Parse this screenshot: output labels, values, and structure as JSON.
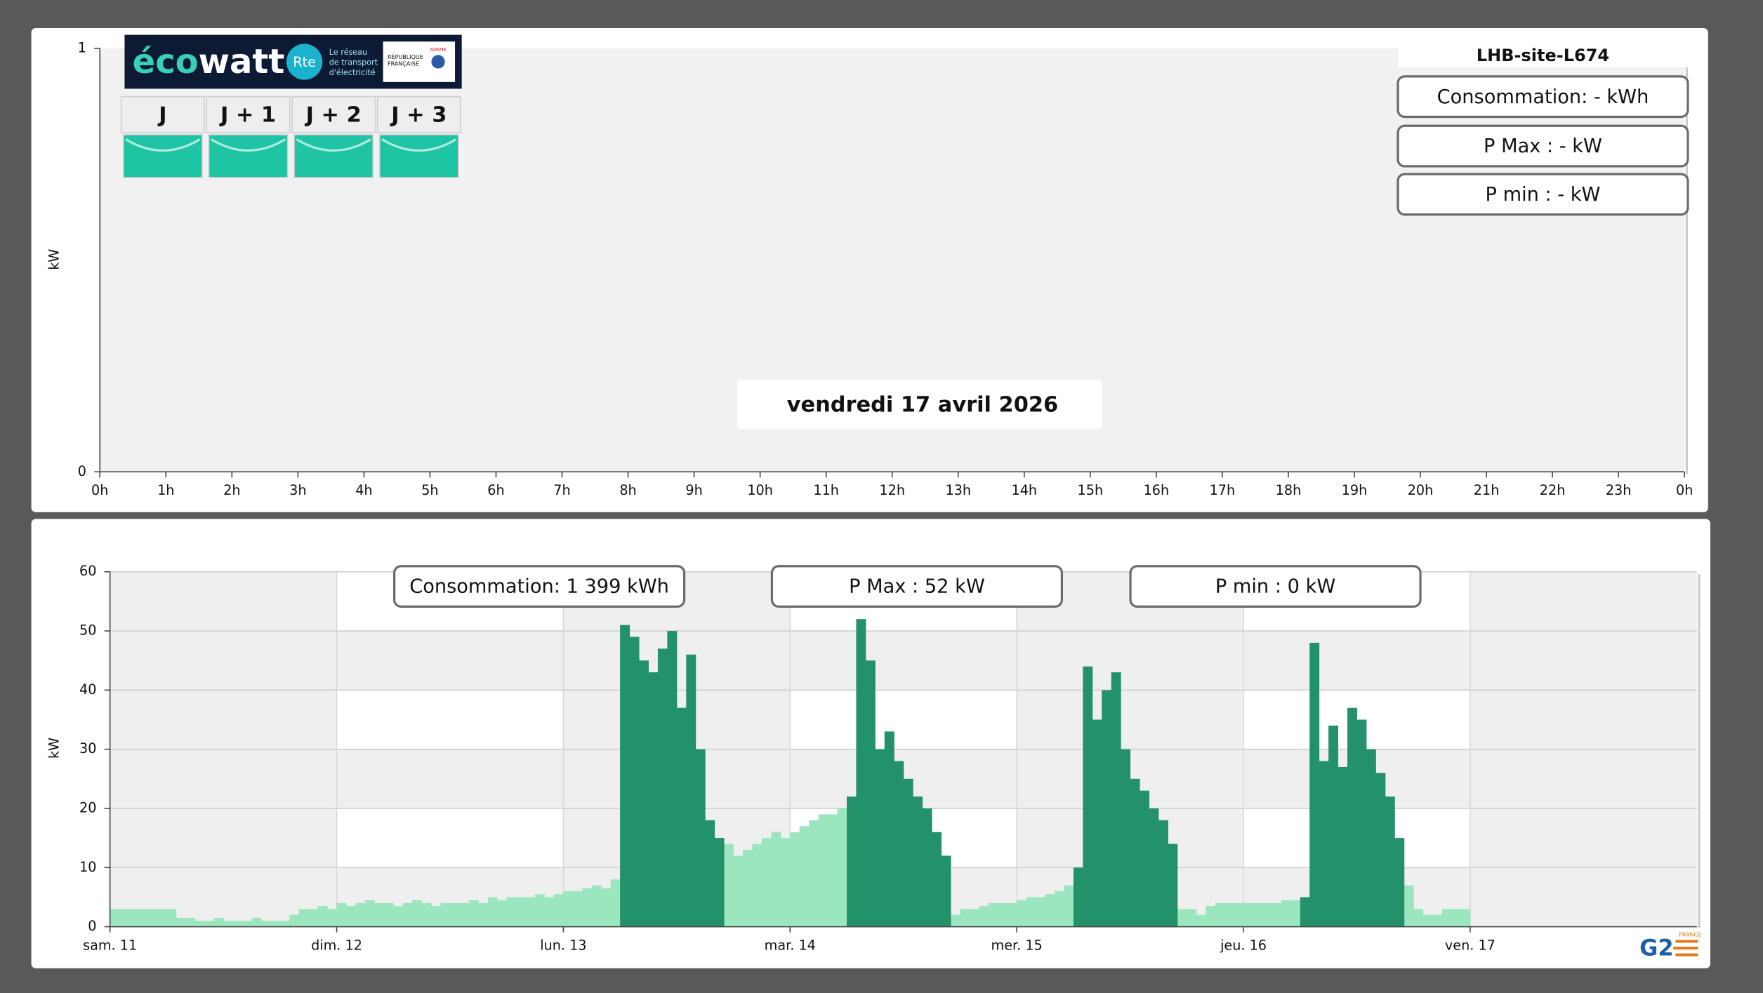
{
  "ecowatt": {
    "logo_parts": [
      "éco",
      "watt"
    ],
    "rte": "Rte",
    "rte_text": [
      "Le réseau",
      "de transport",
      "d'électricité"
    ],
    "republique": [
      "RÉPUBLIQUE",
      "FRANÇAISE"
    ],
    "ademe": "ADEME",
    "days": [
      "J",
      "J + 1",
      "J + 2",
      "J + 3"
    ]
  },
  "site": "LHB-site-L674",
  "top_stats": [
    "Consommation: - kWh",
    "P Max :  - kW",
    "P min : - kW"
  ],
  "date": "vendredi 17 avril 2026",
  "bottom_stats": [
    "Consommation: 1 399 kWh",
    "P Max :  52 kW",
    "P min : 0 kW"
  ],
  "brand": {
    "logo": "G2",
    "country": "FRANCE"
  },
  "chart_data": [
    {
      "type": "line",
      "y_label": "kW",
      "ylim": [
        0,
        1
      ],
      "yticks": [
        0,
        1
      ],
      "xlim": [
        0,
        24
      ],
      "xticks": [
        {
          "value": 0,
          "label": "0h"
        },
        {
          "value": 1,
          "label": "1h"
        },
        {
          "value": 2,
          "label": "2h"
        },
        {
          "value": 3,
          "label": "3h"
        },
        {
          "value": 4,
          "label": "4h"
        },
        {
          "value": 5,
          "label": "5h"
        },
        {
          "value": 6,
          "label": "6h"
        },
        {
          "value": 7,
          "label": "7h"
        },
        {
          "value": 8,
          "label": "8h"
        },
        {
          "value": 9,
          "label": "9h"
        },
        {
          "value": 10,
          "label": "10h"
        },
        {
          "value": 11,
          "label": "11h"
        },
        {
          "value": 12,
          "label": "12h"
        },
        {
          "value": 13,
          "label": "13h"
        },
        {
          "value": 14,
          "label": "14h"
        },
        {
          "value": 15,
          "label": "15h"
        },
        {
          "value": 16,
          "label": "16h"
        },
        {
          "value": 17,
          "label": "17h"
        },
        {
          "value": 18,
          "label": "18h"
        },
        {
          "value": 19,
          "label": "19h"
        },
        {
          "value": 20,
          "label": "20h"
        },
        {
          "value": 21,
          "label": "21h"
        },
        {
          "value": 22,
          "label": "22h"
        },
        {
          "value": 23,
          "label": "23h"
        },
        {
          "value": 24,
          "label": "0h"
        }
      ],
      "series": []
    },
    {
      "type": "bar",
      "y_label": "kW",
      "ylim": [
        0,
        60
      ],
      "yticks": [
        0,
        10,
        20,
        30,
        40,
        50,
        60
      ],
      "grid": true,
      "xlim": [
        0,
        168
      ],
      "xticks": [
        {
          "value": 0,
          "label": "sam. 11"
        },
        {
          "value": 24,
          "label": "dim. 12"
        },
        {
          "value": 48,
          "label": "lun. 13"
        },
        {
          "value": 72,
          "label": "mar. 14"
        },
        {
          "value": 96,
          "label": "mer. 15"
        },
        {
          "value": 120,
          "label": "jeu. 16"
        },
        {
          "value": 144,
          "label": "ven. 17"
        }
      ],
      "x": [
        0,
        1,
        2,
        3,
        4,
        5,
        6,
        7,
        8,
        9,
        10,
        11,
        12,
        13,
        14,
        15,
        16,
        17,
        18,
        19,
        20,
        21,
        22,
        23,
        24,
        25,
        26,
        27,
        28,
        29,
        30,
        31,
        32,
        33,
        34,
        35,
        36,
        37,
        38,
        39,
        40,
        41,
        42,
        43,
        44,
        45,
        46,
        47,
        48,
        49,
        50,
        51,
        52,
        53,
        54,
        55,
        56,
        57,
        58,
        59,
        60,
        61,
        62,
        63,
        64,
        65,
        66,
        67,
        68,
        69,
        70,
        71,
        72,
        73,
        74,
        75,
        76,
        77,
        78,
        79,
        80,
        81,
        82,
        83,
        84,
        85,
        86,
        87,
        88,
        89,
        90,
        91,
        92,
        93,
        94,
        95,
        96,
        97,
        98,
        99,
        100,
        101,
        102,
        103,
        104,
        105,
        106,
        107,
        108,
        109,
        110,
        111,
        112,
        113,
        114,
        115,
        116,
        117,
        118,
        119,
        120,
        121,
        122,
        123,
        124,
        125,
        126,
        127,
        128,
        129,
        130,
        131,
        132,
        133,
        134,
        135,
        136,
        137,
        138,
        139,
        140,
        141,
        142,
        143
      ],
      "series": [
        {
          "color": "#9ce6bf",
          "values": [
            3,
            3,
            3,
            3,
            3,
            3,
            3,
            1.5,
            1.5,
            1,
            1,
            1.5,
            1,
            1,
            1,
            1.5,
            1,
            1,
            1,
            2,
            3,
            3,
            3.5,
            3,
            4,
            3.5,
            4,
            4.5,
            4,
            4,
            3.5,
            4,
            4.5,
            4,
            3.5,
            4,
            4,
            4,
            4.5,
            4,
            5,
            4.5,
            5,
            5,
            5,
            5.5,
            5,
            5.5,
            6,
            6,
            6.5,
            7,
            6.5,
            8,
            null,
            null,
            null,
            null,
            null,
            null,
            null,
            null,
            null,
            null,
            null,
            14,
            12,
            13,
            14,
            15,
            16,
            15,
            16,
            17,
            18,
            19,
            19,
            20,
            null,
            null,
            null,
            null,
            null,
            null,
            null,
            null,
            null,
            null,
            null,
            2,
            3,
            3,
            3.5,
            4,
            4,
            4,
            4.5,
            5,
            5,
            5.5,
            6,
            7,
            null,
            null,
            null,
            null,
            null,
            null,
            null,
            null,
            null,
            null,
            null,
            3,
            3,
            2,
            3.5,
            4,
            4,
            4,
            4,
            4,
            4,
            4,
            4.5,
            4.5,
            null,
            null,
            null,
            null,
            null,
            null,
            null,
            null,
            null,
            null,
            null,
            7,
            3,
            2,
            2,
            3,
            3,
            3
          ]
        },
        {
          "color": "#23916a",
          "values": [
            null,
            null,
            null,
            null,
            null,
            null,
            null,
            null,
            null,
            null,
            null,
            null,
            null,
            null,
            null,
            null,
            null,
            null,
            null,
            null,
            null,
            null,
            null,
            null,
            null,
            null,
            null,
            null,
            null,
            null,
            null,
            null,
            null,
            null,
            null,
            null,
            null,
            null,
            null,
            null,
            null,
            null,
            null,
            null,
            null,
            null,
            null,
            null,
            null,
            null,
            null,
            null,
            null,
            null,
            51,
            49,
            45,
            43,
            47,
            50,
            37,
            46,
            30,
            18,
            15,
            null,
            null,
            null,
            null,
            null,
            null,
            null,
            null,
            null,
            null,
            null,
            null,
            null,
            22,
            52,
            45,
            30,
            33,
            28,
            25,
            22,
            20,
            16,
            12,
            null,
            null,
            null,
            null,
            null,
            null,
            null,
            null,
            null,
            null,
            null,
            null,
            null,
            10,
            44,
            35,
            40,
            43,
            30,
            25,
            23,
            20,
            18,
            14,
            null,
            null,
            null,
            null,
            null,
            null,
            null,
            null,
            null,
            null,
            null,
            null,
            null,
            5,
            48,
            28,
            34,
            27,
            37,
            35,
            30,
            26,
            22,
            15,
            null,
            null,
            null,
            null,
            null,
            null,
            null
          ]
        }
      ]
    }
  ]
}
